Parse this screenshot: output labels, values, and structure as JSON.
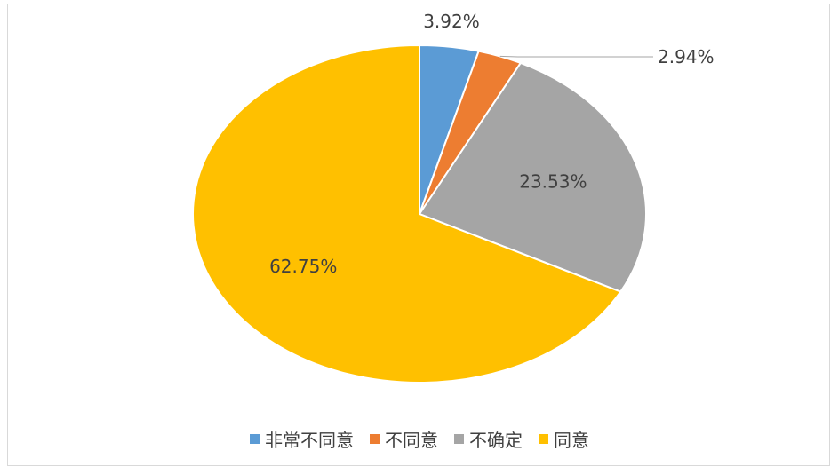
{
  "chart_data": {
    "type": "pie",
    "categories": [
      "非常不同意",
      "不同意",
      "不确定",
      "同意"
    ],
    "values": [
      3.92,
      2.94,
      23.53,
      62.75
    ],
    "data_labels": [
      "3.92%",
      "2.94%",
      "23.53%",
      "62.75%"
    ],
    "colors": [
      "#5b9bd5",
      "#ed7d31",
      "#a5a5a5",
      "#ffc000"
    ],
    "start_angle_deg": 0,
    "direction": "clockwise",
    "legend_position": "bottom"
  }
}
